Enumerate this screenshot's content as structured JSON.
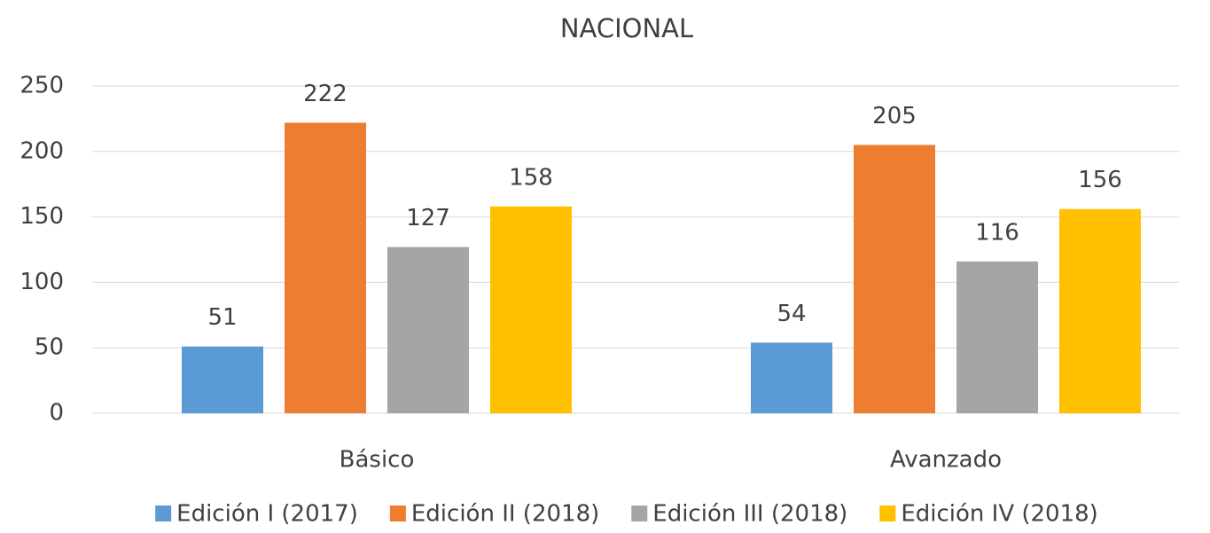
{
  "chart_data": {
    "type": "bar",
    "title": "NACIONAL",
    "categories": [
      "Básico",
      "Avanzado"
    ],
    "series": [
      {
        "name": "Edición I (2017)",
        "color": "#5b9bd5",
        "values": [
          51,
          54
        ]
      },
      {
        "name": "Edición II (2018)",
        "color": "#ed7d31",
        "values": [
          222,
          205
        ]
      },
      {
        "name": "Edición III (2018)",
        "color": "#a5a5a5",
        "values": [
          127,
          116
        ]
      },
      {
        "name": "Edición IV (2018)",
        "color": "#ffc000",
        "values": [
          158,
          156
        ]
      }
    ],
    "ylim": [
      0,
      250
    ],
    "yticks": [
      0,
      50,
      100,
      150,
      200,
      250
    ],
    "grid": true,
    "legend": "bottom"
  }
}
